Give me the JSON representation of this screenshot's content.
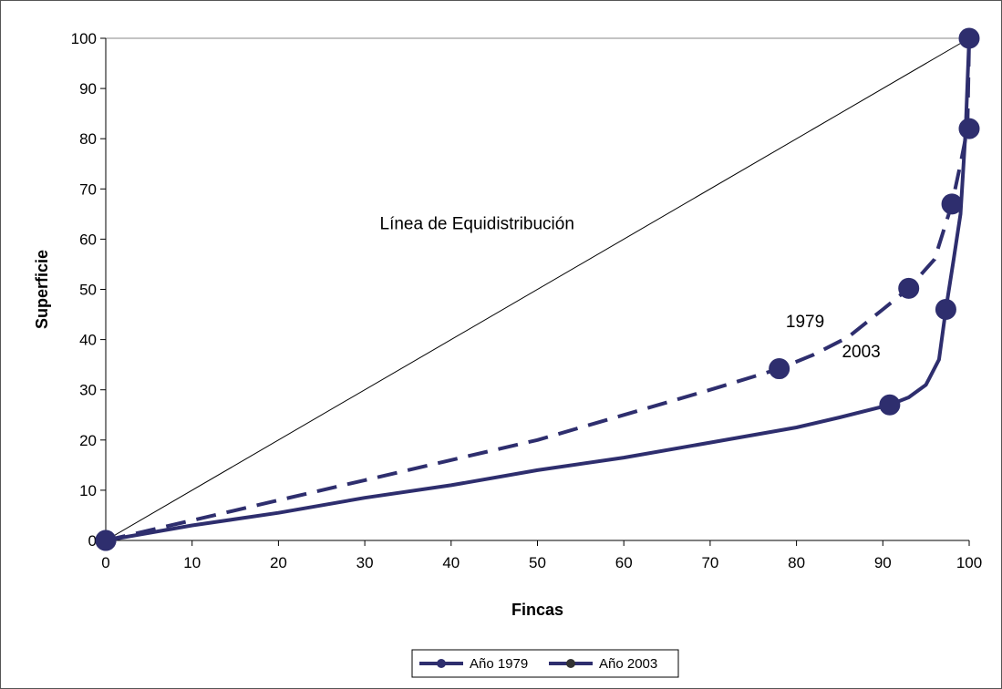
{
  "chart_data": {
    "type": "line",
    "xlabel": "Fincas",
    "ylabel": "Superficie",
    "xlim": [
      0,
      100
    ],
    "ylim": [
      0,
      100
    ],
    "xticks": [
      0,
      10,
      20,
      30,
      40,
      50,
      60,
      70,
      80,
      90,
      100
    ],
    "yticks": [
      0,
      10,
      20,
      30,
      40,
      50,
      60,
      70,
      80,
      90,
      100
    ],
    "grid": false,
    "legend_position": "bottom",
    "series": [
      {
        "name": "Año 1979",
        "color": "#2e2e6e",
        "style": "dashed",
        "x": [
          0,
          10,
          20,
          30,
          40,
          50,
          60,
          70,
          78,
          82,
          86,
          90,
          93,
          96,
          98,
          99,
          99.8,
          100
        ],
        "y": [
          0,
          4,
          8,
          12,
          16,
          20,
          25,
          30,
          34.2,
          37,
          40.5,
          46,
          50.2,
          56,
          67,
          75,
          82,
          100
        ]
      },
      {
        "name": "Año 2003",
        "color": "#2e2e6e",
        "style": "solid",
        "x": [
          0,
          10,
          20,
          30,
          40,
          50,
          60,
          70,
          80,
          85,
          90.8,
          93,
          95,
          96.5,
          97.3,
          98.2,
          99,
          99.6,
          100
        ],
        "y": [
          0,
          3,
          5.5,
          8.5,
          11,
          14,
          16.5,
          19.5,
          22.5,
          24.5,
          27,
          28.5,
          31,
          36,
          46,
          56,
          65,
          82,
          100
        ]
      },
      {
        "name": "Línea de Equidistribución",
        "color": "#000000",
        "style": "thin",
        "x": [
          0,
          100
        ],
        "y": [
          0,
          100
        ]
      }
    ],
    "markers": [
      {
        "series": 0,
        "points": [
          [
            0,
            0
          ],
          [
            78,
            34.2
          ],
          [
            93,
            50.2
          ],
          [
            98,
            67
          ],
          [
            100,
            82
          ],
          [
            100,
            100
          ]
        ]
      },
      {
        "series": 1,
        "points": [
          [
            0,
            0
          ],
          [
            90.8,
            27
          ],
          [
            97.3,
            46
          ]
        ]
      }
    ],
    "annotations": [
      {
        "text": "Línea de Equidistribución",
        "x": 43,
        "y": 62
      },
      {
        "text": "1979",
        "x": 81,
        "y": 42.5
      },
      {
        "text": "2003",
        "x": 87.5,
        "y": 36.5
      }
    ],
    "legend": [
      {
        "label": "Año 1979",
        "marker_color": "#2e2e6e"
      },
      {
        "label": "Año 2003",
        "marker_color": "#333333"
      }
    ]
  }
}
